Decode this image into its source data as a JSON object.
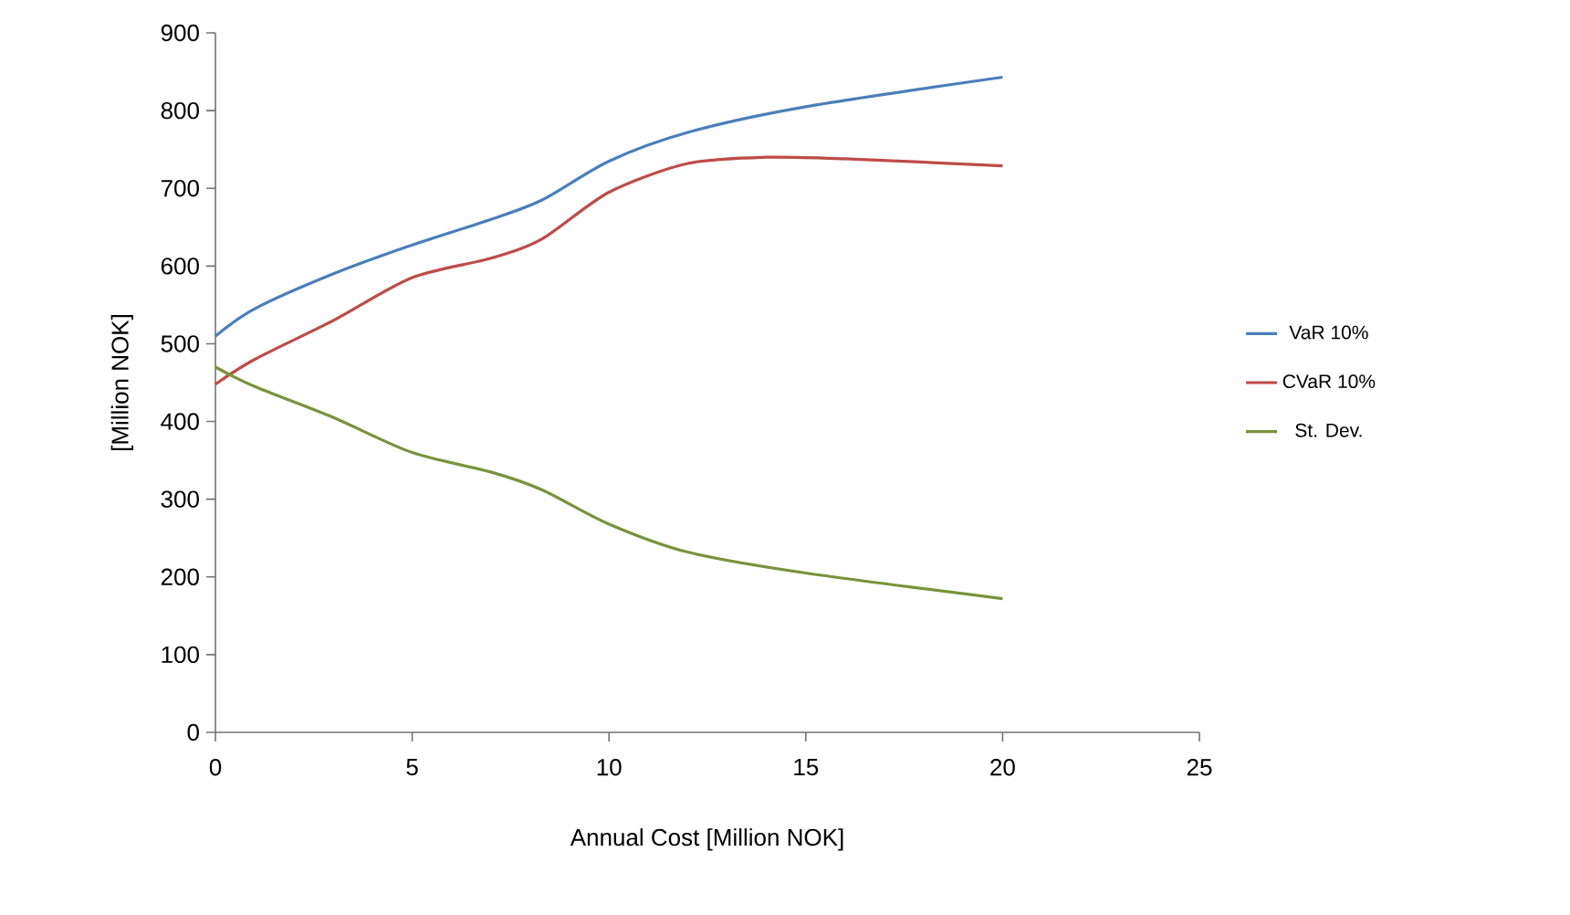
{
  "chart_data": {
    "type": "line",
    "xlabel": "Annual Cost [Million NOK]",
    "ylabel": "[Million NOK]",
    "xlim": [
      0,
      25
    ],
    "xticks": [
      0,
      5,
      10,
      15,
      20,
      25
    ],
    "ylim": [
      0,
      900
    ],
    "yticks": [
      0,
      100,
      200,
      300,
      400,
      500,
      600,
      700,
      800,
      900
    ],
    "grid": false,
    "legend": "right",
    "marker": "none",
    "line_style": "solid",
    "series": [
      {
        "name": "VaR 10%",
        "color": "#4a7ebb",
        "x": [
          0,
          1,
          3,
          5,
          7,
          8.3,
          10,
          12,
          15,
          20
        ],
        "values": [
          510,
          545,
          590,
          627,
          660,
          685,
          735,
          772,
          805,
          843
        ]
      },
      {
        "name": "CVaR 10%",
        "color": "#be4b48",
        "x": [
          0,
          1,
          3,
          5,
          7,
          8.3,
          10,
          12,
          14,
          16,
          20
        ],
        "values": [
          448,
          480,
          530,
          585,
          610,
          635,
          695,
          732,
          740,
          738,
          729
        ]
      },
      {
        "name": "St. Dev.",
        "color": "#77933c",
        "x": [
          0,
          1,
          3,
          5,
          7,
          8.3,
          10,
          12,
          15,
          20
        ],
        "values": [
          470,
          445,
          405,
          360,
          335,
          312,
          268,
          232,
          205,
          172
        ]
      }
    ]
  }
}
